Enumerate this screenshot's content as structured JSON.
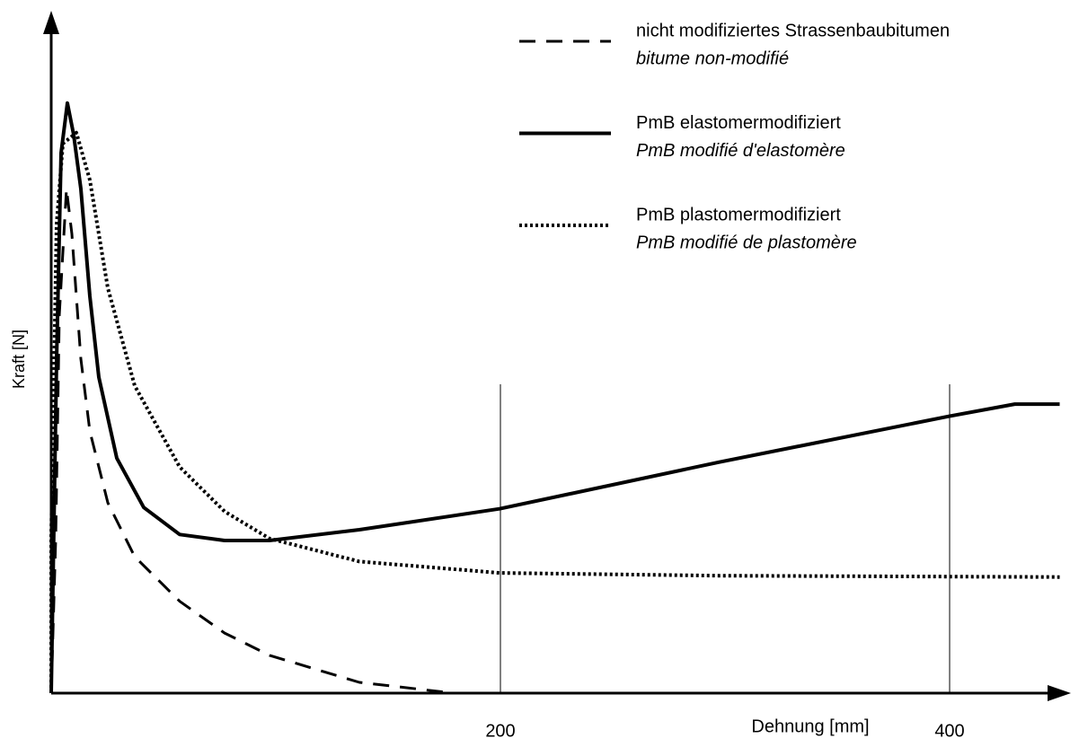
{
  "chart_data": {
    "type": "line",
    "x_label": "Dehnung [mm]",
    "y_label": "Kraft [N]",
    "xlim": [
      0,
      450
    ],
    "ylim": [
      0,
      100
    ],
    "xticks": [
      200,
      400
    ],
    "series": [
      {
        "name": "nicht  modifiziertes  Strassenbaubitumen",
        "label_fr": "bitume non-modifié",
        "color": "#000000",
        "style": "dashed",
        "x": [
          0,
          2,
          3.6,
          6.8,
          9.2,
          13.2,
          17.2,
          25.2,
          37.2,
          57.2,
          77.2,
          97.2,
          137.2,
          179.2
        ],
        "values": [
          0,
          22.9,
          56,
          74.7,
          68,
          49.5,
          38.8,
          28.2,
          20.2,
          13.6,
          8.9,
          5.6,
          1.6,
          0
        ]
      },
      {
        "name": "PmB  elastomermodifiziert",
        "label_fr": "PmB modifié d'elastomère",
        "color": "#000000",
        "style": "solid",
        "x": [
          0,
          2.4,
          4.4,
          7.2,
          10,
          13.2,
          17.2,
          21.2,
          29.2,
          41.2,
          57.2,
          77.2,
          97.2,
          137.2,
          199.6,
          297.2,
          399.6,
          429,
          449
        ],
        "values": [
          0,
          49.5,
          80,
          87.4,
          82.7,
          74.7,
          58.8,
          46.8,
          34.8,
          27.5,
          23.5,
          22.6,
          22.6,
          24.2,
          27.3,
          34.2,
          41,
          42.8,
          42.8
        ]
      },
      {
        "name": "PmB  plastomermodifiziert",
        "label_fr": "PmB modifié de plastomère",
        "color": "#000000",
        "style": "dotted",
        "x": [
          0,
          0,
          2.4,
          5.2,
          11.2,
          17.2,
          25.2,
          37.2,
          57.2,
          77.2,
          97.2,
          137.2,
          199.6,
          297.2,
          449
        ],
        "values": [
          0,
          23,
          69.4,
          81.4,
          83,
          76,
          60,
          45.5,
          33.5,
          26.9,
          22.9,
          19.5,
          17.8,
          17.4,
          17.2
        ]
      }
    ]
  }
}
